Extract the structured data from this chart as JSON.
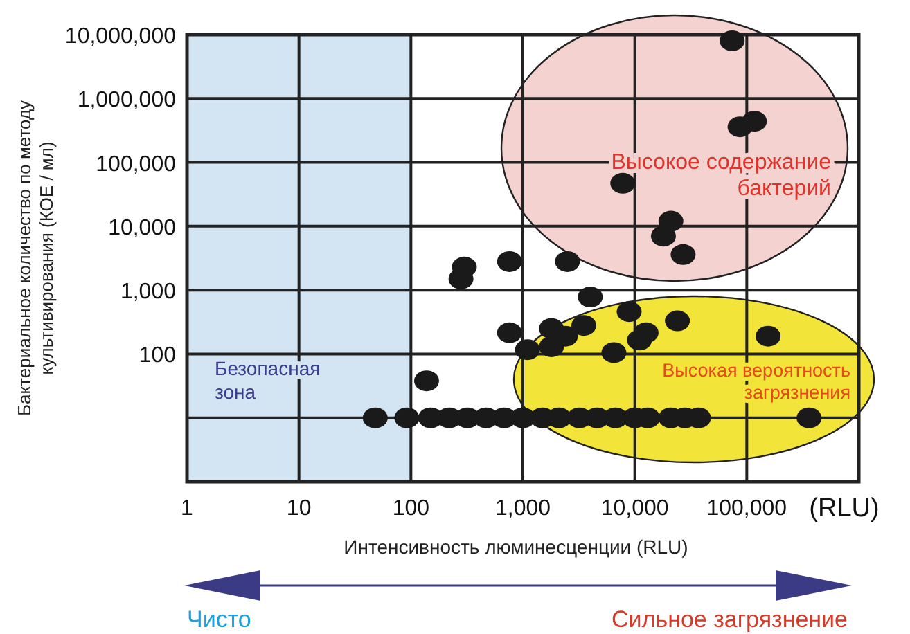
{
  "chart_data": {
    "type": "scatter",
    "xlabel": "Интенсивность люминесценции (RLU)",
    "ylabel": "Бактериальное количество по методу\nкультивирования (КОЕ / мл)",
    "log": "xy",
    "grid": true,
    "marker": "circle",
    "xlim": [
      1,
      1000000
    ],
    "xticks": [
      1,
      10,
      {
        "value": 100,
        "label": "100"
      },
      {
        "value": 1000,
        "label": "1,000"
      },
      {
        "value": 10000,
        "label": "10,000"
      },
      {
        "value": 100000,
        "label": "100,000"
      },
      {
        "value": 1000000,
        "label": null
      }
    ],
    "ylim": [
      1,
      10000000
    ],
    "yticks": [
      {
        "value": 1,
        "label": null
      },
      {
        "value": 10,
        "label": null
      },
      100,
      {
        "value": 1000,
        "label": "1,000"
      },
      {
        "value": 10000,
        "label": "10,000"
      },
      {
        "value": 100000,
        "label": "100,000"
      },
      {
        "value": 1000000,
        "label": "1,000,000"
      },
      {
        "value": 10000000,
        "label": "10,000,000"
      }
    ],
    "bands": [
      {
        "axis": "x",
        "from": 1,
        "to": 100,
        "label": "Безопасная\nзона",
        "color": "#d3e5f3"
      }
    ],
    "series": [
      {
        "color": "#1a1a1a",
        "x": [
          74000,
          87000,
          117000,
          7800,
          21000,
          18000,
          27000,
          300,
          280,
          760,
          2500,
          4000,
          8900,
          24000,
          155000,
          760,
          1800,
          3500,
          2400,
          1100,
          1800,
          6500,
          12600,
          11000,
          138,
          48,
          92,
          150,
          220,
          320,
          470,
          680,
          1000,
          1500,
          2100,
          3200,
          4600,
          6700,
          10000,
          13000,
          21000,
          28000,
          37000,
          360000
        ],
        "values": [
          8000000,
          360000,
          440000,
          47000,
          12000,
          7000,
          3600,
          2300,
          1500,
          2800,
          2800,
          780,
          460,
          330,
          190,
          215,
          250,
          280,
          190,
          117,
          130,
          105,
          215,
          165,
          38,
          10,
          10,
          10,
          10,
          10,
          10,
          10,
          10,
          10,
          10,
          10,
          10,
          10,
          10,
          10,
          10,
          10,
          10,
          10
        ]
      }
    ],
    "annotations": [
      "(RLU)",
      "Высокое содержание\nбактерий",
      "Высокая вероятность\nзагрязнения",
      "Чисто",
      "Сильное загрязнение"
    ]
  }
}
